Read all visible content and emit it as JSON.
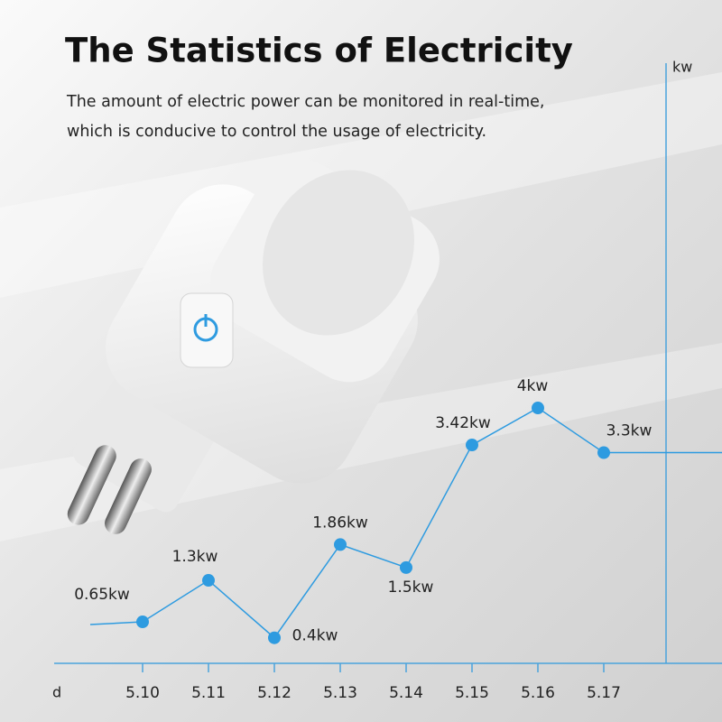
{
  "chart_data": {
    "type": "line",
    "title": "The Statistics of Electricity",
    "subtitle": [
      "The amount of electric power can be monitored in real-time,",
      "which is conducive to control the usage of electricity."
    ],
    "y_label": "kw",
    "x_label": "d",
    "categories": [
      "5.10",
      "5.11",
      "5.12",
      "5.13",
      "5.14",
      "5.15",
      "5.16",
      "5.17"
    ],
    "series": [
      {
        "name": "power",
        "color": "#2e9be0",
        "values": [
          0.65,
          1.3,
          0.4,
          1.86,
          1.5,
          3.42,
          4,
          3.3
        ],
        "value_labels": [
          "0.65kw",
          "1.3kw",
          "0.4kw",
          "1.86kw",
          "1.5kw",
          "3.42kw",
          "4kw",
          "3.3kw"
        ]
      }
    ],
    "ylim": [
      0,
      9.4
    ],
    "axis_color": "#4aa3dc"
  }
}
